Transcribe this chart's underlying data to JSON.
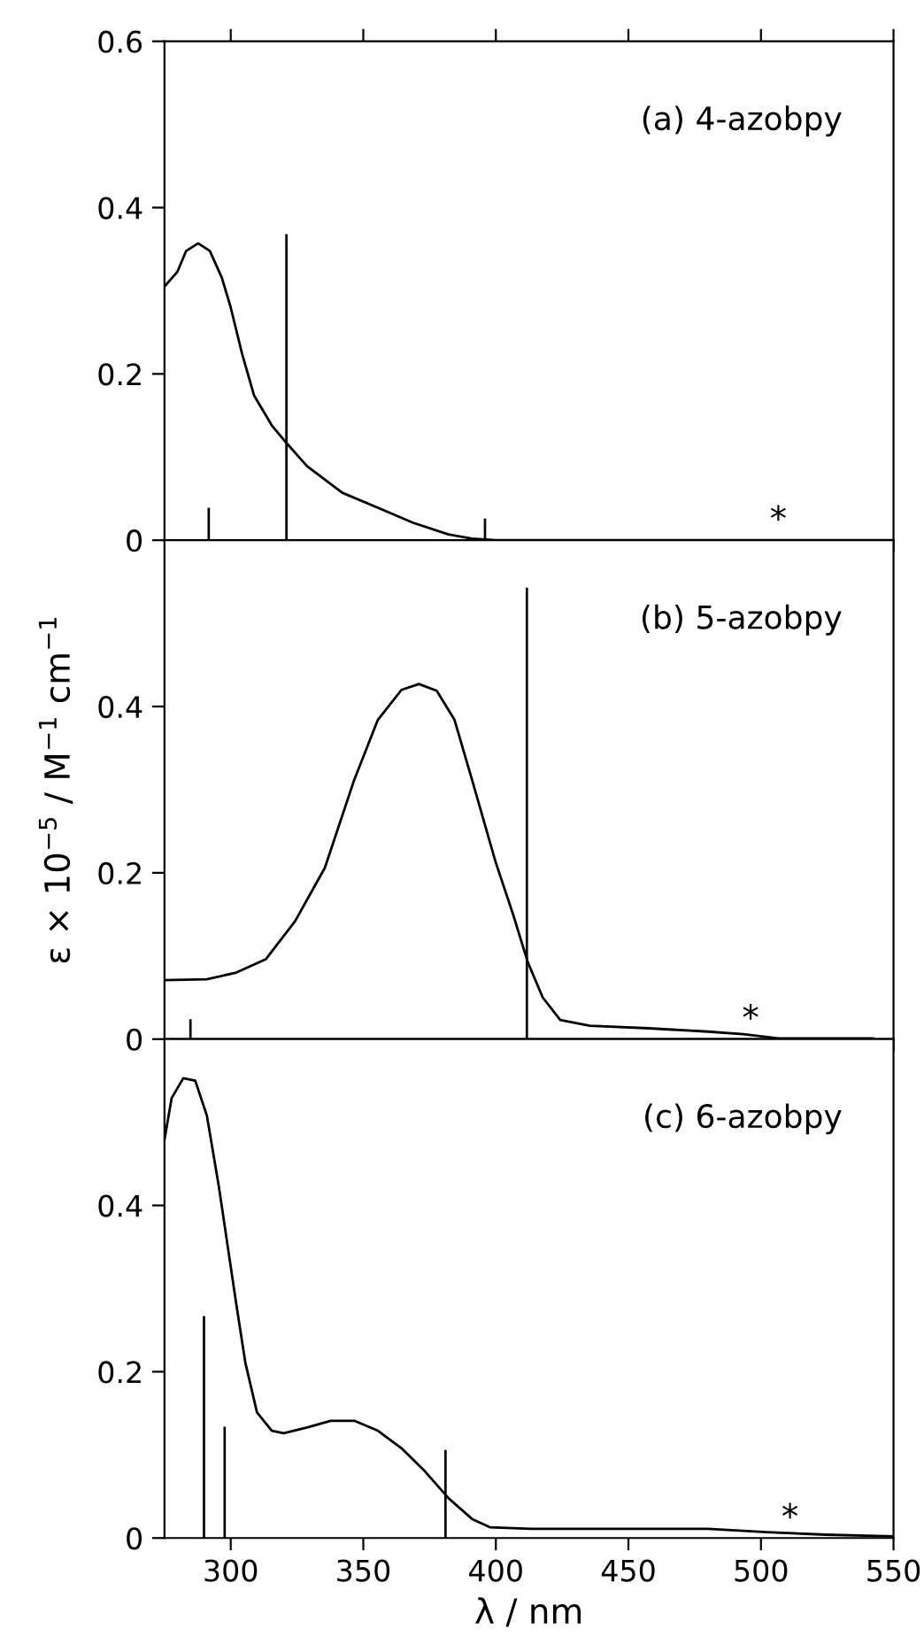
{
  "chart_data": [
    {
      "type": "line",
      "title": "(a) 4-azobpy",
      "xlim": [
        275,
        550
      ],
      "xticks": [
        300,
        350,
        400,
        450,
        500,
        550
      ],
      "ylim": [
        0,
        0.6
      ],
      "yticks": [
        0,
        0.2,
        0.4,
        0.6
      ],
      "tick_labels": "y",
      "series": [
        {
          "color": "#000000",
          "x": [
            275,
            279.9,
            283.2,
            287.7,
            292.1,
            296.6,
            299.9,
            304.3,
            308.8,
            315.5,
            321,
            328.8,
            342.1,
            355.5,
            368.8,
            382.1,
            391,
            400,
            457.7,
            550
          ],
          "values": [
            0.305,
            0.323,
            0.348,
            0.357,
            0.348,
            0.316,
            0.281,
            0.224,
            0.174,
            0.138,
            0.117,
            0.089,
            0.057,
            0.039,
            0.021,
            0.007,
            0.002,
            0,
            0,
            0
          ]
        },
        {
          "type": "bar",
          "color": "#000000",
          "x": [
            291.7,
            321,
            395.9
          ],
          "values": [
            0.039,
            0.368,
            0.026
          ]
        }
      ],
      "annotations": [
        "*"
      ]
    },
    {
      "type": "line",
      "title": "(b) 5-azobpy",
      "ylabel": "ε × 10$^{−5}$ / M$^{−1}$ cm$^{−1}$",
      "xlim": [
        275,
        550
      ],
      "xticks": [
        300,
        350,
        400,
        450,
        500,
        550
      ],
      "ylim": [
        0,
        0.6
      ],
      "yticks": [
        0,
        0.2,
        0.4
      ],
      "tick_labels": "y",
      "series": [
        {
          "color": "#000000",
          "x": [
            275,
            291,
            302.1,
            313.2,
            324.3,
            335.5,
            346.6,
            355.5,
            364.4,
            371,
            377.7,
            384.4,
            391,
            399.9,
            406.6,
            412.1,
            417.7,
            424.3,
            435.5,
            457.7,
            480,
            493.3,
            506.6,
            542.2
          ],
          "values": [
            0.071,
            0.072,
            0.08,
            0.096,
            0.142,
            0.206,
            0.312,
            0.384,
            0.42,
            0.427,
            0.419,
            0.384,
            0.312,
            0.213,
            0.149,
            0.092,
            0.05,
            0.023,
            0.016,
            0.013,
            0.009,
            0.006,
            0.001,
            0.001
          ]
        },
        {
          "type": "bar",
          "color": "#000000",
          "x": [
            284.8,
            411.7
          ],
          "values": [
            0.024,
            0.543
          ]
        }
      ],
      "annotations": [
        "*"
      ]
    },
    {
      "type": "line",
      "title": "(c) 6-azobpy",
      "xlabel": "λ / nm",
      "xlim": [
        275,
        550
      ],
      "xticks": [
        300,
        350,
        400,
        450,
        500,
        550
      ],
      "ylim": [
        0,
        0.6
      ],
      "yticks": [
        0,
        0.2,
        0.4
      ],
      "series": [
        {
          "color": "#000000",
          "x": [
            275,
            277.7,
            282.1,
            286.6,
            291,
            295.5,
            298.8,
            302.1,
            305.5,
            309.9,
            315.5,
            320,
            328.8,
            337.7,
            346.6,
            355.5,
            364.4,
            373.3,
            382.1,
            391,
            397.7,
            413.3,
            480,
            502.2,
            524.4,
            550
          ],
          "values": [
            0.479,
            0.529,
            0.553,
            0.55,
            0.508,
            0.423,
            0.352,
            0.281,
            0.211,
            0.151,
            0.129,
            0.126,
            0.133,
            0.141,
            0.141,
            0.129,
            0.108,
            0.08,
            0.048,
            0.023,
            0.013,
            0.011,
            0.011,
            0.007,
            0.004,
            0.002
          ]
        },
        {
          "type": "bar",
          "color": "#000000",
          "x": [
            289.9,
            297.7,
            381
          ],
          "values": [
            0.267,
            0.134,
            0.106
          ]
        }
      ],
      "annotations": [
        "*"
      ]
    }
  ]
}
